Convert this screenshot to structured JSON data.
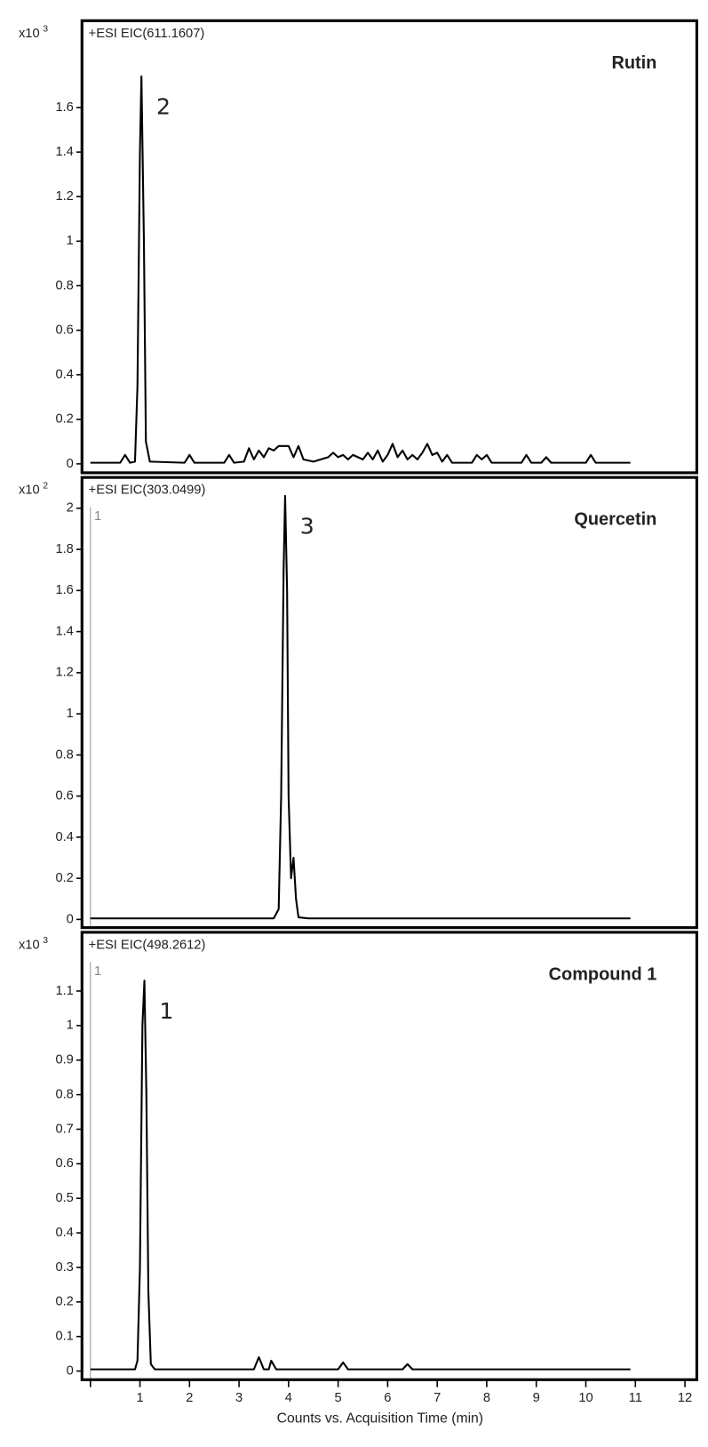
{
  "chart_data": [
    {
      "type": "line",
      "title": "Rutin",
      "subtitle": "+ESI EIC(611.1607)",
      "y_scale_label": "x10",
      "y_scale_exponent": 3,
      "peak_label": "2",
      "xlim": [
        -0.17,
        12.24
      ],
      "ylim": [
        -0.04,
        1.99
      ],
      "yticks": [
        0,
        0.2,
        0.4,
        0.6,
        0.8,
        1,
        1.2,
        1.4,
        1.6
      ],
      "series": [
        {
          "color": "#000000",
          "x": [
            0,
            0.6,
            0.7,
            0.8,
            0.9,
            0.95,
            1.0,
            1.03,
            1.08,
            1.12,
            1.2,
            1.9,
            2.0,
            2.1,
            2.7,
            2.8,
            2.9,
            3.1,
            3.2,
            3.3,
            3.4,
            3.5,
            3.6,
            3.7,
            3.8,
            4.0,
            4.1,
            4.2,
            4.3,
            4.5,
            4.8,
            4.9,
            5.0,
            5.1,
            5.2,
            5.3,
            5.5,
            5.6,
            5.7,
            5.8,
            5.9,
            6.0,
            6.1,
            6.2,
            6.3,
            6.4,
            6.5,
            6.6,
            6.7,
            6.8,
            6.9,
            7.0,
            7.1,
            7.2,
            7.3,
            7.7,
            7.8,
            7.9,
            8.0,
            8.1,
            8.7,
            8.8,
            8.9,
            9.1,
            9.2,
            9.3,
            10.0,
            10.1,
            10.2,
            10.9
          ],
          "values": [
            0.005,
            0.005,
            0.04,
            0.005,
            0.01,
            0.35,
            1.4,
            1.74,
            1.0,
            0.1,
            0.01,
            0.005,
            0.04,
            0.005,
            0.005,
            0.04,
            0.005,
            0.01,
            0.07,
            0.02,
            0.06,
            0.03,
            0.07,
            0.06,
            0.08,
            0.08,
            0.03,
            0.08,
            0.02,
            0.01,
            0.03,
            0.05,
            0.03,
            0.04,
            0.02,
            0.04,
            0.02,
            0.05,
            0.02,
            0.06,
            0.01,
            0.04,
            0.09,
            0.03,
            0.06,
            0.02,
            0.04,
            0.02,
            0.05,
            0.09,
            0.04,
            0.05,
            0.01,
            0.04,
            0.005,
            0.005,
            0.04,
            0.02,
            0.04,
            0.005,
            0.005,
            0.04,
            0.005,
            0.005,
            0.03,
            0.005,
            0.005,
            0.04,
            0.005,
            0.005
          ]
        }
      ]
    },
    {
      "type": "line",
      "title": "Quercetin",
      "subtitle": "+ESI EIC(303.0499)",
      "y_scale_label": "x10",
      "y_scale_exponent": 2,
      "peak_label": "3",
      "cursor_label": "1",
      "xlim": [
        -0.17,
        12.24
      ],
      "ylim": [
        -0.04,
        2.15
      ],
      "yticks": [
        0,
        0.2,
        0.4,
        0.6,
        0.8,
        1,
        1.2,
        1.4,
        1.6,
        1.8,
        2
      ],
      "series": [
        {
          "color": "#000000",
          "x": [
            0,
            3.7,
            3.8,
            3.85,
            3.9,
            3.93,
            3.97,
            4.0,
            4.05,
            4.1,
            4.15,
            4.2,
            4.4,
            10.9
          ],
          "values": [
            0.005,
            0.005,
            0.05,
            0.6,
            1.7,
            2.06,
            1.6,
            0.6,
            0.2,
            0.3,
            0.1,
            0.01,
            0.005,
            0.005
          ]
        }
      ]
    },
    {
      "type": "line",
      "title": "Compound 1",
      "subtitle": "+ESI EIC(498.2612)",
      "y_scale_label": "x10",
      "y_scale_exponent": 3,
      "peak_label": "1",
      "cursor_label": "1",
      "xlim": [
        -0.17,
        12.24
      ],
      "ylim": [
        -0.025,
        1.27
      ],
      "yticks": [
        0,
        0.1,
        0.2,
        0.3,
        0.4,
        0.5,
        0.6,
        0.7,
        0.8,
        0.9,
        1,
        1.1
      ],
      "xticks": [
        1,
        2,
        3,
        4,
        5,
        6,
        7,
        8,
        9,
        10,
        11,
        12
      ],
      "xlabel": "Counts vs. Acquisition Time (min)",
      "series": [
        {
          "color": "#000000",
          "x": [
            0,
            0.9,
            0.95,
            1.0,
            1.05,
            1.09,
            1.13,
            1.17,
            1.22,
            1.3,
            3.3,
            3.4,
            3.5,
            3.6,
            3.65,
            3.75,
            5.0,
            5.1,
            5.2,
            6.3,
            6.4,
            6.5,
            10.9
          ],
          "values": [
            0.005,
            0.005,
            0.03,
            0.3,
            1.0,
            1.13,
            0.8,
            0.23,
            0.02,
            0.005,
            0.005,
            0.04,
            0.005,
            0.005,
            0.03,
            0.005,
            0.005,
            0.025,
            0.005,
            0.005,
            0.02,
            0.005,
            0.005
          ]
        }
      ]
    }
  ]
}
